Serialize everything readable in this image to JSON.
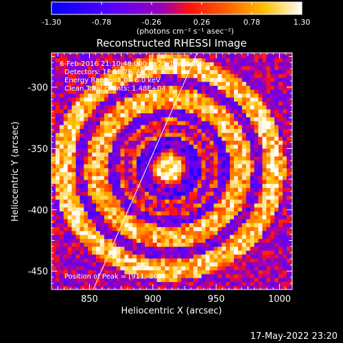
{
  "chart_data": {
    "type": "heatmap",
    "title": "Reconstructed RHESSI Image",
    "xlabel": "Heliocentric X (arcsec)",
    "ylabel": "Heliocentric Y (arcsec)",
    "xlim": [
      820,
      1010
    ],
    "ylim": [
      -465,
      -272
    ],
    "x_ticks": [
      850,
      900,
      950,
      1000
    ],
    "y_ticks": [
      -300,
      -350,
      -400,
      -450
    ],
    "colorbar": {
      "unit_label": "(photons cm⁻² s⁻¹ asec⁻²)",
      "range": [
        -1.3,
        1.3
      ],
      "ticks": [
        "-1.30",
        "-0.78",
        "-0.26",
        "0.26",
        "0.78",
        "1.30"
      ]
    },
    "annotations": [
      "6-Feb-2016 21:10:48.000 to 21:12:08.000",
      "Detectors: 1F 5F 7F, Att 0",
      "Energy Range: 3.0 - 6.0 keV",
      "Clean     Total counts: 1.48E+04",
      "Position of Peak = [911,-367]"
    ],
    "peak": {
      "x": 911,
      "y": -367,
      "value": 1.3
    },
    "limb_line": {
      "x": [
        853,
        935
      ],
      "y": [
        -465,
        -272
      ]
    },
    "rings": [
      {
        "radius": 0,
        "value": 1.25
      },
      {
        "radius": 19,
        "value": -0.55
      },
      {
        "radius": 33,
        "value": 0.35
      },
      {
        "radius": 55,
        "value": 0.85
      },
      {
        "radius": 80,
        "value": 0.9
      }
    ]
  },
  "footer": {
    "timestamp": "17-May-2022 23:20"
  }
}
